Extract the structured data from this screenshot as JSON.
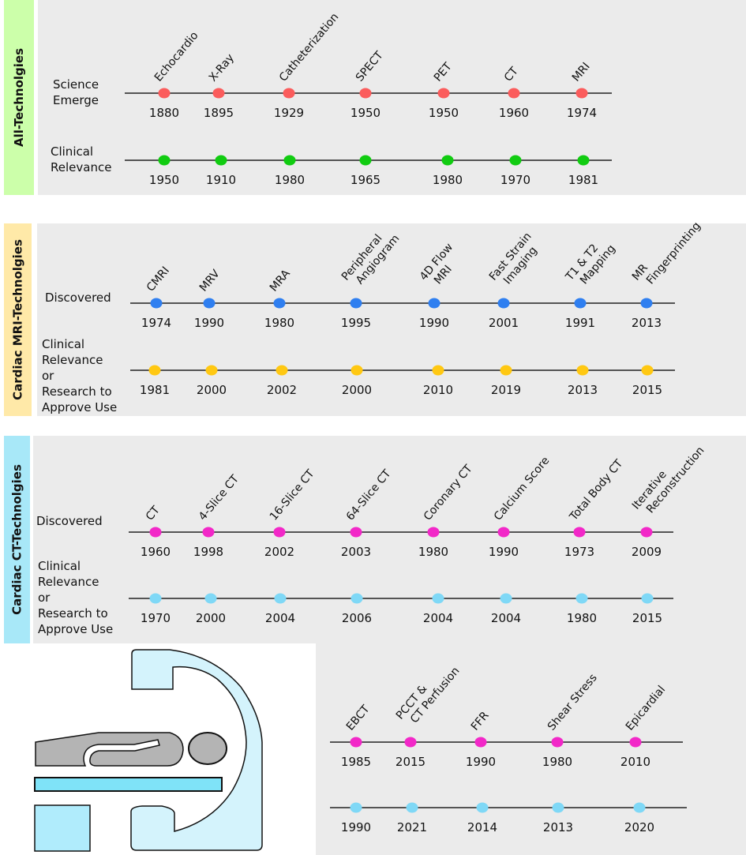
{
  "colors": {
    "panel_bg": "#ebebeb",
    "line": "#222222"
  },
  "panels": [
    {
      "title": "All-Technolgies",
      "title_bg": "#ccffaa",
      "rows": [
        {
          "label": [
            "Science",
            "Emerge"
          ],
          "dot_color": "#fb5c5c",
          "items": [
            {
              "name": [
                "Echocardio"
              ],
              "year": "1880"
            },
            {
              "name": [
                "X-Ray"
              ],
              "year": "1895"
            },
            {
              "name": [
                "Catheterization"
              ],
              "year": "1929"
            },
            {
              "name": [
                "SPECT"
              ],
              "year": "1950"
            },
            {
              "name": [
                "PET"
              ],
              "year": "1950"
            },
            {
              "name": [
                "CT"
              ],
              "year": "1960"
            },
            {
              "name": [
                "MRI"
              ],
              "year": "1974"
            }
          ]
        },
        {
          "label": [
            "Clinical",
            "Relevance"
          ],
          "dot_color": "#11cc11",
          "items": [
            {
              "year": "1950"
            },
            {
              "year": "1910"
            },
            {
              "year": "1980"
            },
            {
              "year": "1965"
            },
            {
              "year": "1980"
            },
            {
              "year": "1970"
            },
            {
              "year": "1981"
            }
          ]
        }
      ]
    },
    {
      "title": "Cardiac MRI-Technolgies",
      "title_bg": "#ffe9a8",
      "rows": [
        {
          "label": [
            "Discovered"
          ],
          "dot_color": "#2f7ff0",
          "items": [
            {
              "name": [
                "CMRI"
              ],
              "year": "1974"
            },
            {
              "name": [
                "MRV"
              ],
              "year": "1990"
            },
            {
              "name": [
                "MRA"
              ],
              "year": "1980"
            },
            {
              "name": [
                "Peripheral",
                "Angiogram"
              ],
              "year": "1995"
            },
            {
              "name": [
                "4D Flow",
                "MRI"
              ],
              "year": "1990"
            },
            {
              "name": [
                "Fast Strain",
                "Imaging"
              ],
              "year": "2001"
            },
            {
              "name": [
                "T1 & T2",
                "Mapping"
              ],
              "year": "1991"
            },
            {
              "name": [
                "MR",
                "Fingerprinting"
              ],
              "year": "2013"
            }
          ]
        },
        {
          "label": [
            "Clinical",
            "Relevance",
            "or",
            "Research to",
            "Approve Use"
          ],
          "dot_color": "#ffc812",
          "items": [
            {
              "year": "1981"
            },
            {
              "year": "2000"
            },
            {
              "year": "2002"
            },
            {
              "year": "2000"
            },
            {
              "year": "2010"
            },
            {
              "year": "2019"
            },
            {
              "year": "2013"
            },
            {
              "year": "2015"
            }
          ]
        }
      ]
    },
    {
      "title": "Cardiac CT-Technolgies",
      "title_bg": "#a8e8f8",
      "rows": [
        {
          "label": [
            "Discovered"
          ],
          "dot_color": "#f228c8",
          "items": [
            {
              "name": [
                "CT"
              ],
              "year": "1960"
            },
            {
              "name": [
                "4-Slice CT"
              ],
              "year": "1998"
            },
            {
              "name": [
                "16-Slice CT"
              ],
              "year": "2002"
            },
            {
              "name": [
                "64-Slice CT"
              ],
              "year": "2003"
            },
            {
              "name": [
                "Coronary CT"
              ],
              "year": "1980"
            },
            {
              "name": [
                "Calcium  Score"
              ],
              "year": "1990"
            },
            {
              "name": [
                "Total Body CT"
              ],
              "year": "1973"
            },
            {
              "name": [
                "Iterative",
                "Reconstruction"
              ],
              "year": "2009"
            }
          ]
        },
        {
          "label": [
            "Clinical",
            "Relevance",
            "or",
            "Research to",
            "Approve Use"
          ],
          "dot_color": "#7fd8f6",
          "items": [
            {
              "year": "1970"
            },
            {
              "year": "2000"
            },
            {
              "year": "2004"
            },
            {
              "year": "2006"
            },
            {
              "year": "2004"
            },
            {
              "year": "2004"
            },
            {
              "year": "1980"
            },
            {
              "year": "2015"
            }
          ]
        }
      ]
    },
    {
      "title": "",
      "rows": [
        {
          "label": [],
          "dot_color": "#f228c8",
          "items": [
            {
              "name": [
                "EBCT"
              ],
              "year": "1985"
            },
            {
              "name": [
                "PCCT &",
                "CT Perfusion"
              ],
              "year": "2015"
            },
            {
              "name": [
                "FFR"
              ],
              "year": "1990"
            },
            {
              "name": [
                "Shear Stress"
              ],
              "year": "1980"
            },
            {
              "name": [
                "Epicardial"
              ],
              "year": "2010"
            }
          ]
        },
        {
          "label": [],
          "dot_color": "#7fd8f6",
          "items": [
            {
              "year": "1990"
            },
            {
              "year": "2021"
            },
            {
              "year": "2014"
            },
            {
              "year": "2013"
            },
            {
              "year": "2020"
            }
          ]
        }
      ]
    }
  ]
}
